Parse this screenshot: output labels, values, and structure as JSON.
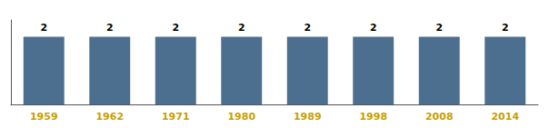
{
  "chart_data": {
    "type": "bar",
    "categories": [
      "1959",
      "1962",
      "1971",
      "1980",
      "1989",
      "1998",
      "2008",
      "2014"
    ],
    "values": [
      2,
      2,
      2,
      2,
      2,
      2,
      2,
      2
    ],
    "color": "#4d6f8f",
    "ylim": [
      0,
      2.5
    ],
    "grid": false,
    "data_labels": true,
    "tick_labels": "x"
  }
}
